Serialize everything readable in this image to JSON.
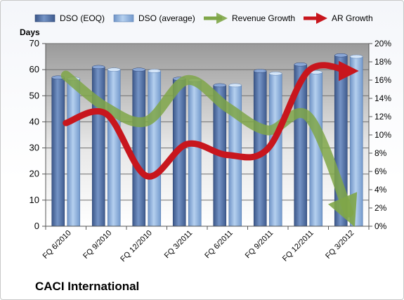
{
  "chart_data": {
    "type": "bar+line",
    "title": "",
    "company": "CACI International",
    "y_left_label": "Days",
    "y_left_range": [
      0,
      70
    ],
    "y_left_ticks": [
      "0",
      "10",
      "20",
      "30",
      "40",
      "50",
      "60",
      "70"
    ],
    "y_right_range": [
      0,
      20
    ],
    "y_right_ticks": [
      "0%",
      "2%",
      "4%",
      "6%",
      "8%",
      "10%",
      "12%",
      "14%",
      "16%",
      "18%",
      "20%"
    ],
    "categories": [
      "FQ 6/2010",
      "FQ 9/2010",
      "FQ 12/2010",
      "FQ 3/2011",
      "FQ 6/2011",
      "FQ 9/2011",
      "FQ 12/2011",
      "FQ 3/2012"
    ],
    "legend_placement": "top",
    "series": [
      {
        "name": "DSO (EOQ)",
        "type": "bar",
        "axis": "left",
        "color": "#4f6fa3",
        "values": [
          57,
          61,
          60,
          56.5,
          54,
          59.5,
          62,
          65.5
        ]
      },
      {
        "name": "DSO (average)",
        "type": "bar",
        "axis": "left",
        "color": "#8fb4e3",
        "values": [
          56.5,
          60,
          59.5,
          56,
          54,
          58.5,
          59,
          65
        ]
      },
      {
        "name": "Revenue Growth",
        "type": "arrow-line",
        "axis": "right",
        "color": "#7fa648",
        "values": [
          16.5,
          13,
          11.5,
          16,
          13,
          10.5,
          12,
          1.5
        ]
      },
      {
        "name": "AR Growth",
        "type": "arrow-line",
        "axis": "right",
        "color": "#d02228",
        "values": [
          11.3,
          12.3,
          5.5,
          9,
          7.8,
          8.5,
          17,
          17
        ]
      }
    ]
  }
}
